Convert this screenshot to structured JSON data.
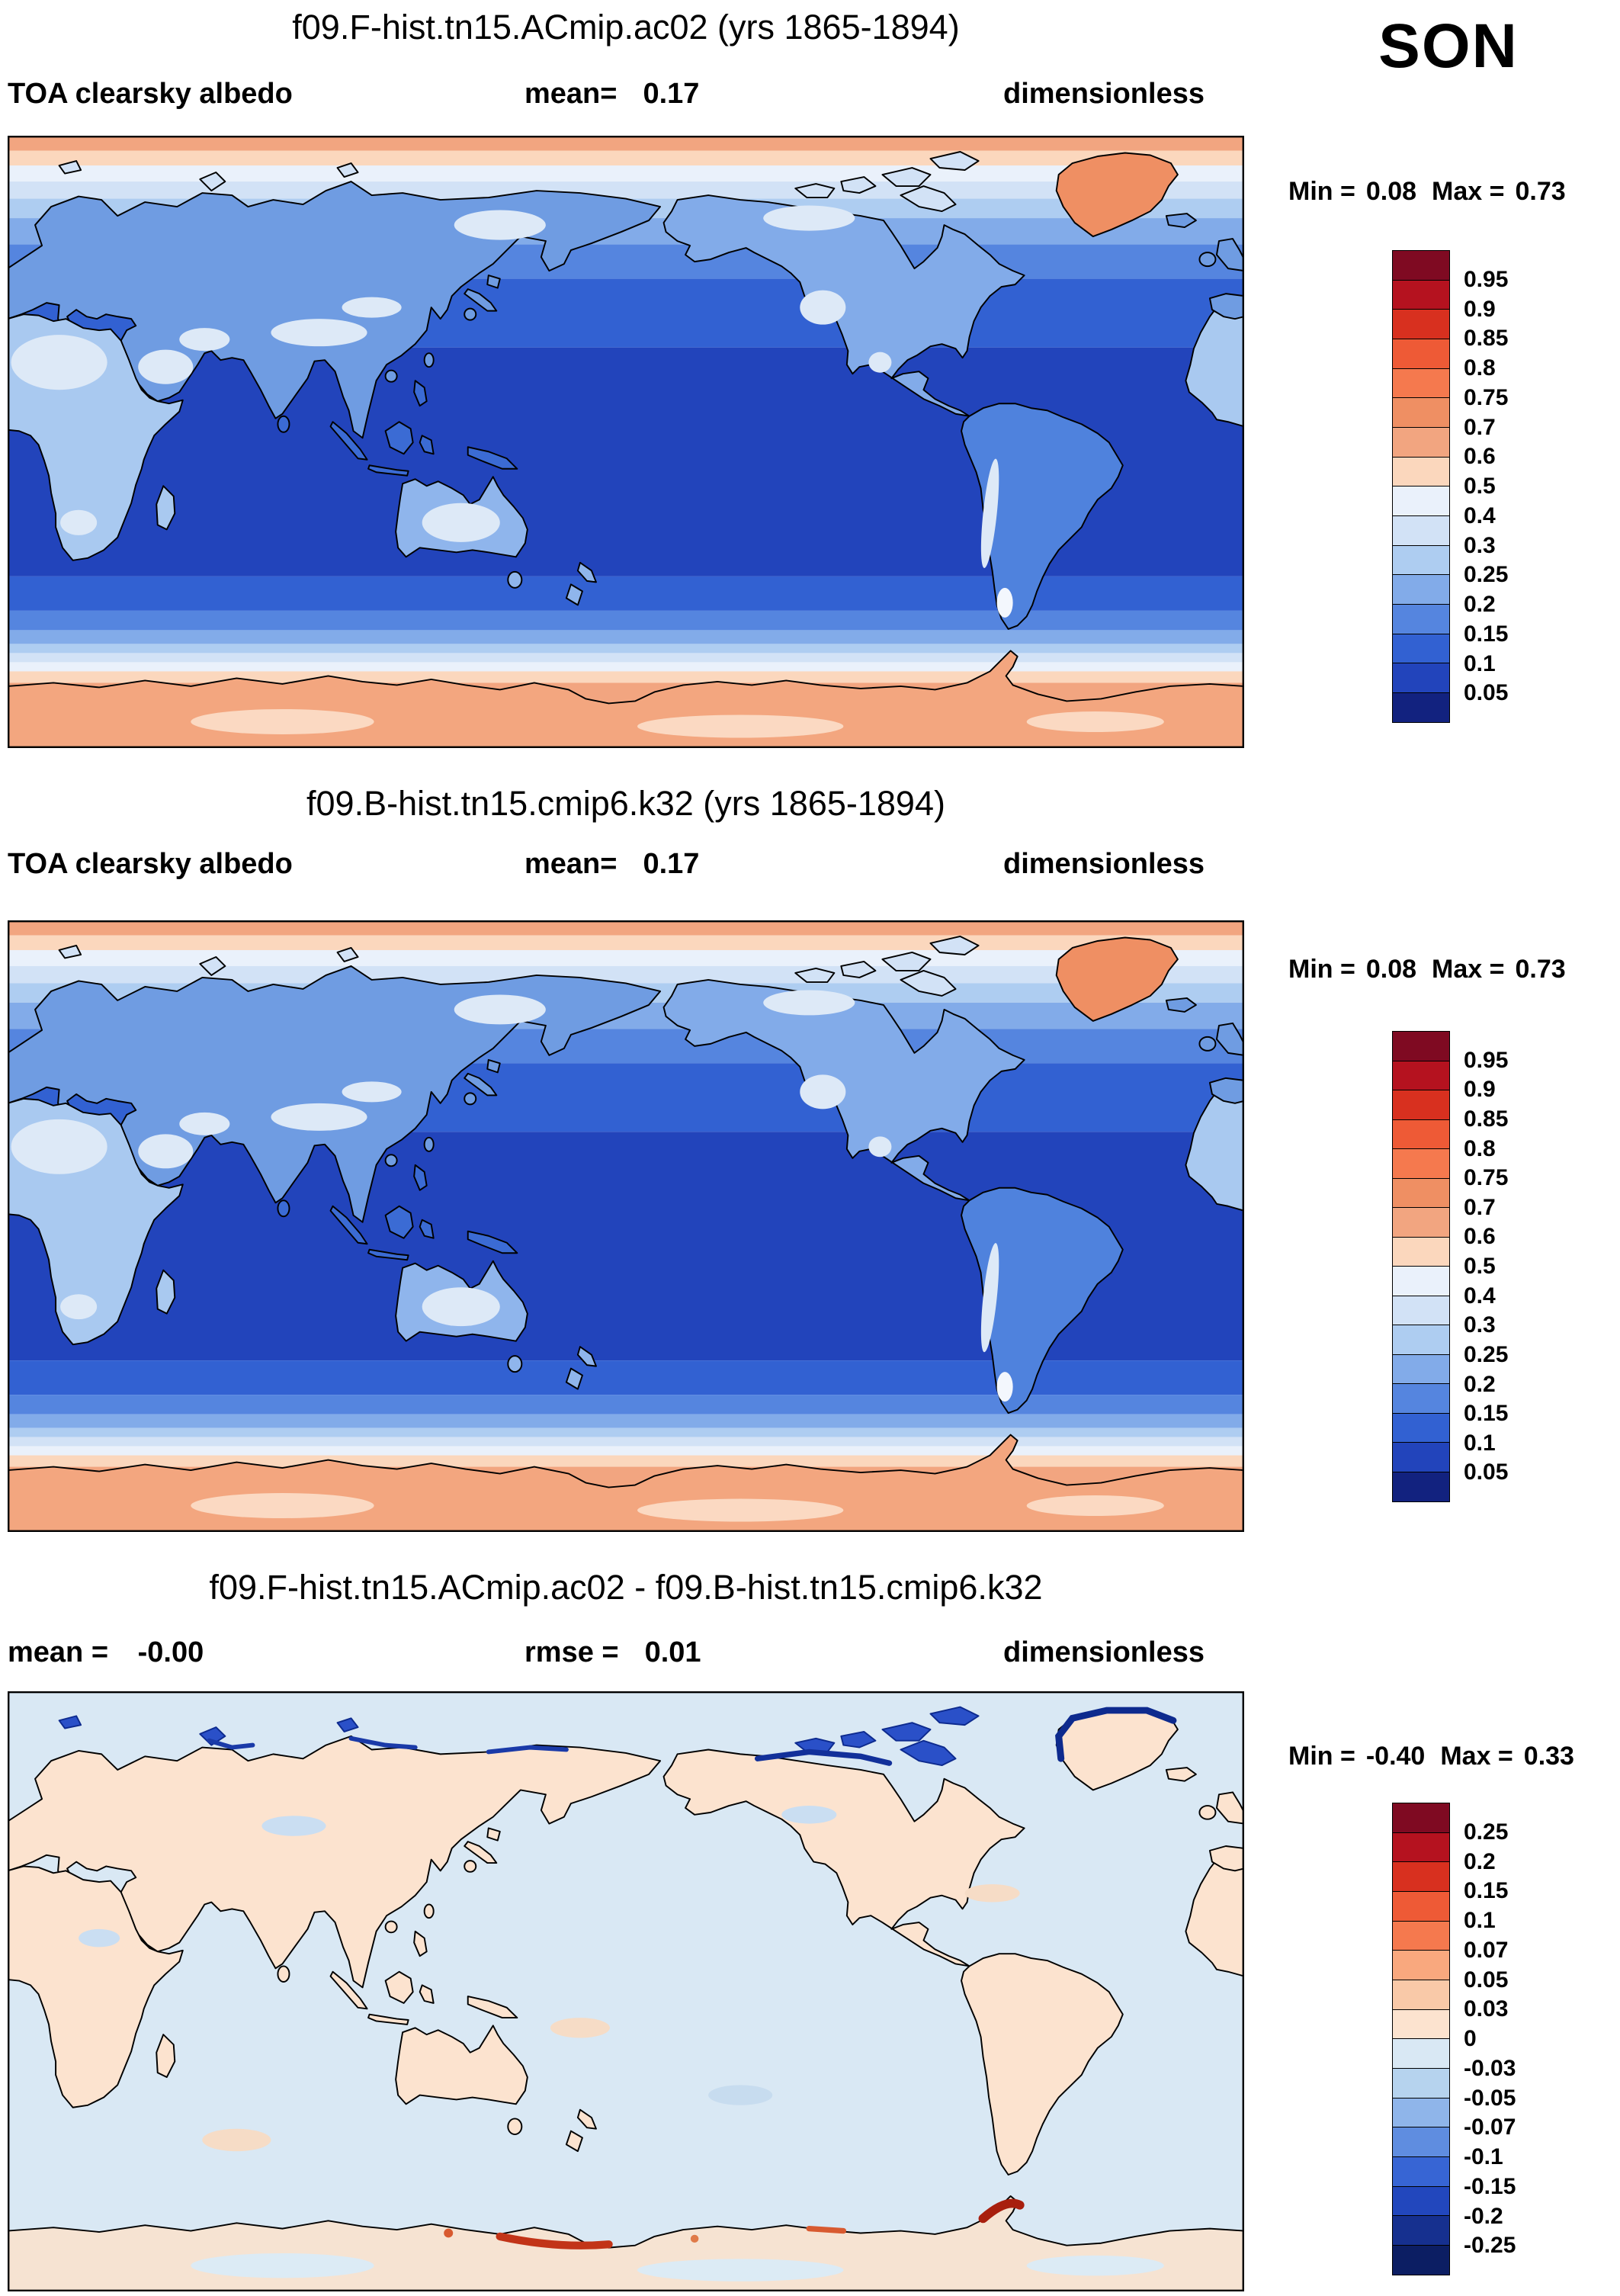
{
  "season": "SON",
  "panels": [
    {
      "title": "f09.F-hist.tn15.ACmip.ac02 (yrs 1865-1894)",
      "variable": "TOA clearsky albedo",
      "mean_label": "mean=",
      "mean_value": "0.17",
      "units": "dimensionless",
      "min_label": "Min =",
      "min_value": "0.08",
      "max_label": "Max =",
      "max_value": "0.73"
    },
    {
      "title": "f09.B-hist.tn15.cmip6.k32 (yrs 1865-1894)",
      "variable": "TOA clearsky albedo",
      "mean_label": "mean=",
      "mean_value": "0.17",
      "units": "dimensionless",
      "min_label": "Min =",
      "min_value": "0.08",
      "max_label": "Max =",
      "max_value": "0.73"
    },
    {
      "title": "f09.F-hist.tn15.ACmip.ac02 - f09.B-hist.tn15.cmip6.k32",
      "mean_label": "mean =",
      "mean_value": "-0.00",
      "rmse_label": "rmse =",
      "rmse_value": "0.01",
      "units": "dimensionless",
      "min_label": "Min =",
      "min_value": "-0.40",
      "max_label": "Max =",
      "max_value": "0.33"
    }
  ],
  "colorbar_albedo": {
    "labels": [
      "0.95",
      "0.9",
      "0.85",
      "0.8",
      "0.75",
      "0.7",
      "0.6",
      "0.5",
      "0.4",
      "0.3",
      "0.25",
      "0.2",
      "0.15",
      "0.1",
      "0.05"
    ],
    "colors": [
      "#7f0a22",
      "#b5121f",
      "#d8301f",
      "#ee5a36",
      "#f5794e",
      "#ef8f63",
      "#f2a580",
      "#fbd7bd",
      "#eaf1fb",
      "#d2e2f6",
      "#aecdf1",
      "#82abe9",
      "#5585df",
      "#3261d2",
      "#2244bb",
      "#12227f"
    ]
  },
  "colorbar_diff": {
    "labels": [
      "0.25",
      "0.2",
      "0.15",
      "0.1",
      "0.07",
      "0.05",
      "0.03",
      "0",
      "-0.03",
      "-0.05",
      "-0.07",
      "-0.1",
      "-0.15",
      "-0.2",
      "-0.25"
    ],
    "colors": [
      "#7f0a22",
      "#b5121f",
      "#d8301f",
      "#ee5a36",
      "#f5794e",
      "#f9a87e",
      "#f9c9a8",
      "#fce3cf",
      "#d9e8f4",
      "#b6d3ee",
      "#8fb5ea",
      "#5f8de0",
      "#3765d4",
      "#2247bd",
      "#16308f",
      "#0c1e63"
    ]
  },
  "chart_data": [
    {
      "type": "heatmap",
      "title": "f09.F-hist.tn15.ACmip.ac02 (yrs 1865-1894)",
      "variable": "TOA clearsky albedo",
      "season": "SON",
      "units": "dimensionless",
      "mean": 0.17,
      "min": 0.08,
      "max": 0.73,
      "projection": "global cylindrical equidistant, Pacific-centered (0-360E, 90N-90S)",
      "contour_levels": [
        0.05,
        0.1,
        0.15,
        0.2,
        0.25,
        0.3,
        0.4,
        0.5,
        0.6,
        0.7,
        0.75,
        0.8,
        0.85,
        0.9,
        0.95
      ],
      "palette": "dark blue (low) through pale blue/white to salmon/red (high)",
      "features": "tropical oceans darkest blue (0.05-0.1), midlatitude oceans 0.1-0.25, continents light blue 0.2-0.4 with pale patches over Tibet/Sahara/Andes, polar ice and Antarctica salmon 0.5-0.7, Greenland orange 0.7-0.75",
      "legend_position": "right vertical colorbar"
    },
    {
      "type": "heatmap",
      "title": "f09.B-hist.tn15.cmip6.k32 (yrs 1865-1894)",
      "variable": "TOA clearsky albedo",
      "season": "SON",
      "units": "dimensionless",
      "mean": 0.17,
      "min": 0.08,
      "max": 0.73,
      "projection": "global cylindrical equidistant, Pacific-centered (0-360E, 90N-90S)",
      "contour_levels": [
        0.05,
        0.1,
        0.15,
        0.2,
        0.25,
        0.3,
        0.4,
        0.5,
        0.6,
        0.7,
        0.75,
        0.8,
        0.85,
        0.9,
        0.95
      ],
      "palette": "dark blue (low) through pale blue/white to salmon/red (high)",
      "features": "nearly identical spatial pattern to case 1",
      "legend_position": "right vertical colorbar"
    },
    {
      "type": "heatmap",
      "title": "f09.F-hist.tn15.ACmip.ac02 - f09.B-hist.tn15.cmip6.k32",
      "variable": "TOA clearsky albedo difference",
      "season": "SON",
      "units": "dimensionless",
      "mean": -0.0,
      "rmse": 0.01,
      "min": -0.4,
      "max": 0.33,
      "projection": "global cylindrical equidistant, Pacific-centered (0-360E, 90N-90S)",
      "contour_levels": [
        -0.25,
        -0.2,
        -0.15,
        -0.1,
        -0.07,
        -0.05,
        -0.03,
        0,
        0.03,
        0.05,
        0.07,
        0.1,
        0.15,
        0.2,
        0.25
      ],
      "palette": "blue (negative) to red (positive) diverging",
      "features": "near-zero everywhere: oceans pale blue (-0.03 to 0), land pale peach (0 to 0.03); strong negative (dark blue) along Canadian Arctic archipelago, Greenland and Siberian Arctic coasts; positive red spots along Antarctic coastline",
      "legend_position": "right vertical colorbar"
    }
  ]
}
